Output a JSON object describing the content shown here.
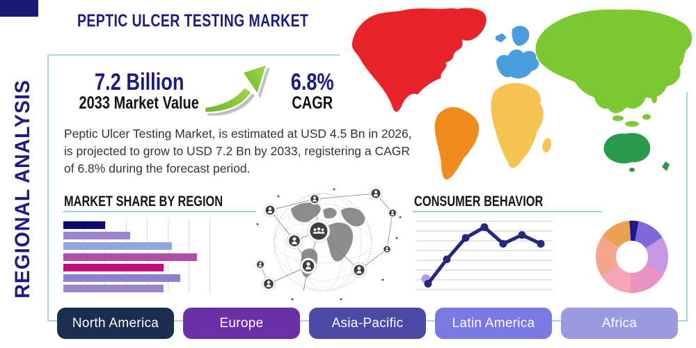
{
  "page": {
    "title": "PEPTIC ULCER TESTING MARKET",
    "sidebar_label": "REGIONAL ANALYSIS",
    "frame_color": "#a9d6e5",
    "brand_navy": "#1b1b80"
  },
  "stats": {
    "market_value": {
      "value": "7.2 Billion",
      "label": "2033 Market Value"
    },
    "cagr": {
      "value": "6.8%",
      "label": "CAGR"
    },
    "growth_arrow_icon": "curved-growth-arrow",
    "arrow_color": "#7cc133"
  },
  "description": "Peptic Ulcer Testing Market, is estimated at USD 4.5 Bn in 2026, is projected to grow to USD 7.2 Bn by 2033, registering a CAGR of 6.8% during the forecast period.",
  "chart_data": [
    {
      "type": "bar",
      "title": "MARKET SHARE BY REGION",
      "orientation": "horizontal",
      "values": [
        25,
        40,
        65,
        80,
        60,
        70,
        60
      ],
      "xlim": [
        0,
        100
      ],
      "gridlines": 7,
      "grid_step_pct": 12.5,
      "grid": true,
      "tick_labels": "none shown",
      "colors": [
        "#0a0a70",
        "#9b85cf",
        "#8fa6e0",
        "#b04fa8",
        "#c4087e",
        "#8f7fd1",
        "#9b85cf"
      ]
    },
    {
      "type": "line",
      "title": "CONSUMER BEHAVIOR",
      "x": [
        1,
        2,
        3,
        4,
        5,
        6,
        7
      ],
      "values": [
        0.6,
        3.1,
        5.3,
        6.4,
        4.7,
        5.6,
        4.7
      ],
      "ylim": [
        0,
        7
      ],
      "grid": true,
      "tick_labels": "none shown",
      "line_color": "#26267e",
      "start_dot_color": "#b49ce0"
    },
    {
      "type": "pie",
      "title": "regional share donut (unlabeled)",
      "donut": true,
      "values": [
        4,
        13,
        17,
        18,
        15,
        19,
        14
      ],
      "colors": [
        "#1a1a8c",
        "#8168d8",
        "#c897e3",
        "#ea93c3",
        "#f7a6b9",
        "#f4a78c",
        "#eaa14f"
      ]
    }
  ],
  "globe": {
    "icon": "globe-network-people"
  },
  "map": {
    "icon": "world-map",
    "regions": [
      {
        "key": "na",
        "name": "North America",
        "color": "#e8232a"
      },
      {
        "key": "sa",
        "name": "South America",
        "color": "#f08c1e"
      },
      {
        "key": "eu",
        "name": "Europe",
        "color": "#4a9edd"
      },
      {
        "key": "af",
        "name": "Africa",
        "color": "#f6c453"
      },
      {
        "key": "as",
        "name": "Asia",
        "color": "#7cc832"
      },
      {
        "key": "au",
        "name": "Australia",
        "color": "#2a9b4d"
      }
    ]
  },
  "footer": {
    "regions": [
      {
        "label": "North America",
        "color": "#1b2d4f"
      },
      {
        "label": "Europe",
        "color": "#6b2fa8"
      },
      {
        "label": "Asia-Pacific",
        "color": "#4d49a5"
      },
      {
        "label": "Latin America",
        "color": "#7a78e2"
      },
      {
        "label": "Africa",
        "color": "#9b99e0"
      }
    ]
  }
}
